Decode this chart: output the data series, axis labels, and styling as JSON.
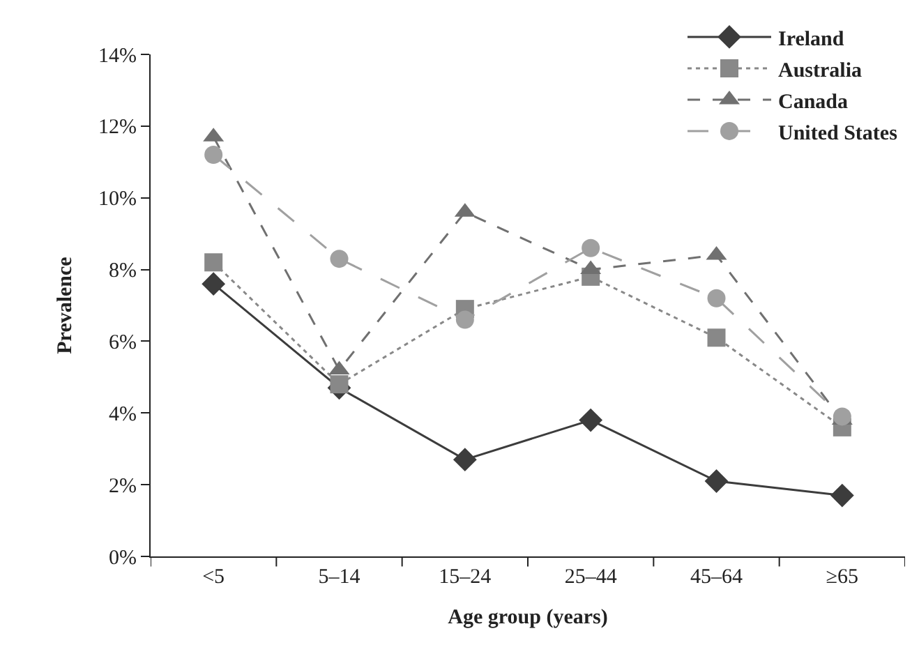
{
  "chart_data": {
    "type": "line",
    "xlabel": "Age group (years)",
    "ylabel": "Prevalence",
    "categories": [
      "<5",
      "5–14",
      "15–24",
      "25–44",
      "45–64",
      "≥65"
    ],
    "ylim": [
      0,
      14
    ],
    "yticks": [
      {
        "value": 0,
        "label": "0%"
      },
      {
        "value": 2,
        "label": "2%"
      },
      {
        "value": 4,
        "label": "4%"
      },
      {
        "value": 6,
        "label": "6%"
      },
      {
        "value": 8,
        "label": "8%"
      },
      {
        "value": 10,
        "label": "10%"
      },
      {
        "value": 12,
        "label": "12%"
      },
      {
        "value": 14,
        "label": "14%"
      }
    ],
    "legend": "top right",
    "series": [
      {
        "name": "Ireland",
        "color": "#3c3c3c",
        "marker": "diamond",
        "line_style": "solid",
        "values": [
          7.6,
          4.7,
          2.7,
          3.8,
          2.1,
          1.7
        ]
      },
      {
        "name": "Australia",
        "color": "#888888",
        "marker": "square",
        "line_style": "dotted",
        "values": [
          8.2,
          4.8,
          6.9,
          7.8,
          6.1,
          3.6
        ]
      },
      {
        "name": "Canada",
        "color": "#707070",
        "marker": "triangle",
        "line_style": "dashed",
        "values": [
          11.7,
          5.2,
          9.6,
          8.0,
          8.4,
          3.8
        ]
      },
      {
        "name": "United States",
        "color": "#a0a0a0",
        "marker": "circle",
        "line_style": "longdash",
        "values": [
          11.2,
          8.3,
          6.6,
          8.6,
          7.2,
          3.9
        ]
      }
    ]
  }
}
